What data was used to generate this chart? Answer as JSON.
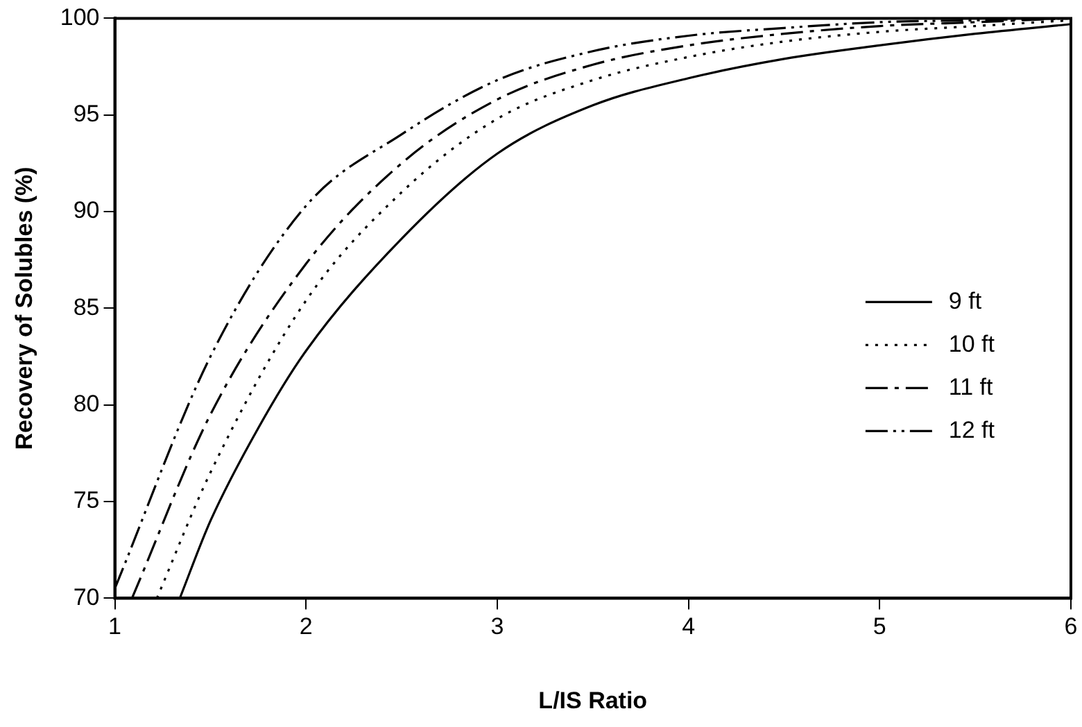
{
  "chart_data": {
    "type": "line",
    "xlabel": "L/IS Ratio",
    "ylabel": "Recovery of Solubles (%)",
    "xlim": [
      1,
      6
    ],
    "xticks": [
      1,
      2,
      3,
      4,
      5,
      6
    ],
    "ylim": [
      70,
      100
    ],
    "yticks": [
      70,
      75,
      80,
      85,
      90,
      95,
      100
    ],
    "grid": false,
    "legend": "bottom right",
    "marker": "none",
    "series": [
      {
        "name": "9 ft",
        "color": "#000000",
        "line_style": "solid",
        "x": [
          1.34,
          1.5,
          1.75,
          2,
          2.5,
          3,
          3.5,
          4,
          4.5,
          5,
          5.5,
          6
        ],
        "values": [
          70,
          74,
          78.8,
          82.8,
          88.6,
          93,
          95.5,
          96.9,
          97.9,
          98.6,
          99.2,
          99.7
        ]
      },
      {
        "name": "10 ft",
        "color": "#000000",
        "line_style": "dotted",
        "x": [
          1.22,
          1.5,
          2,
          2.5,
          3,
          3.5,
          4,
          4.5,
          5,
          5.5,
          6
        ],
        "values": [
          70,
          76.5,
          85.4,
          91,
          94.8,
          96.8,
          98,
          98.8,
          99.3,
          99.6,
          99.9
        ]
      },
      {
        "name": "11 ft",
        "color": "#000000",
        "line_style": "dashdot",
        "x": [
          1.09,
          1.5,
          2,
          2.5,
          3,
          3.5,
          4,
          4.5,
          5,
          5.5,
          6
        ],
        "values": [
          70,
          79.5,
          87.3,
          92.5,
          95.8,
          97.6,
          98.6,
          99.2,
          99.6,
          99.8,
          100
        ]
      },
      {
        "name": "12 ft",
        "color": "#000000",
        "line_style": "dashdotdot",
        "x": [
          1,
          1.5,
          2,
          2.5,
          3,
          3.5,
          4,
          4.5,
          5,
          5.5,
          6
        ],
        "values": [
          70.5,
          82.5,
          90.3,
          94,
          96.8,
          98.3,
          99.1,
          99.5,
          99.8,
          99.9,
          100
        ]
      }
    ]
  }
}
